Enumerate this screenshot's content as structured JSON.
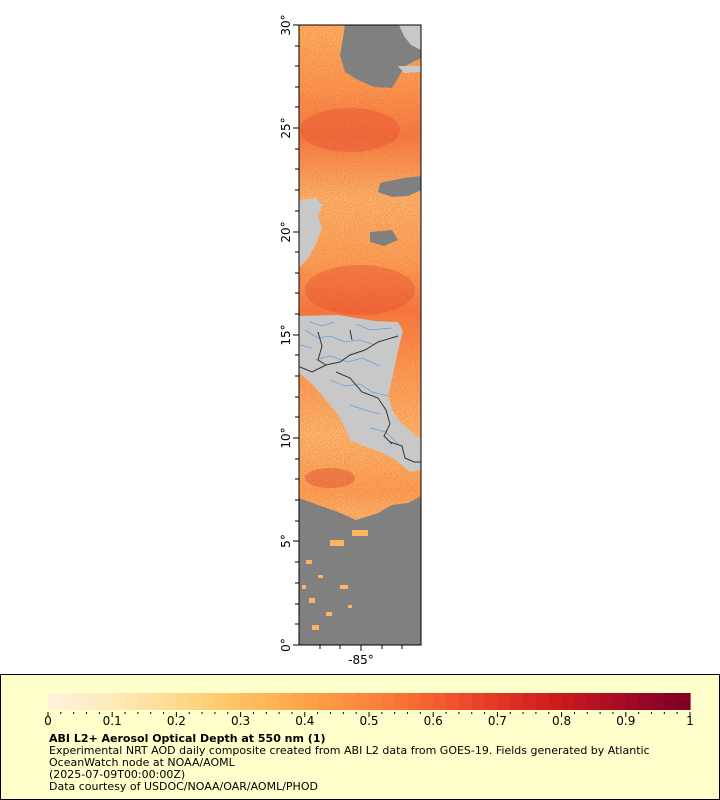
{
  "map": {
    "lat_labels": [
      "0°",
      "5°",
      "10°",
      "15°",
      "20°",
      "25°",
      "30°"
    ],
    "lon_labels": [
      "-85°"
    ],
    "colors": {
      "land": "#c8c8c8",
      "no_data": "#808080",
      "borders": "#333333",
      "rivers": "#6f9fd8"
    }
  },
  "legend": {
    "ticks": [
      "0",
      "0.1",
      "0.2",
      "0.3",
      "0.4",
      "0.5",
      "0.6",
      "0.7",
      "0.8",
      "0.9",
      "1"
    ],
    "colormap": [
      "#fff2d8",
      "#fee9b8",
      "#fed98c",
      "#fec062",
      "#fda447",
      "#fc853d",
      "#f4612f",
      "#e33726",
      "#cc1a1e",
      "#a50c24",
      "#800026"
    ],
    "title": "ABI L2+ Aerosol Optical Depth at 550 nm (1)",
    "subtitle": "Experimental NRT AOD daily composite created from ABI L2 data from GOES-19. Fields generated by Atlantic OceanWatch node at NOAA/AOML",
    "date": "(2025-07-09T00:00:00Z)",
    "credit": "Data courtesy of USDOC/NOAA/OAR/AOML/PHOD"
  }
}
